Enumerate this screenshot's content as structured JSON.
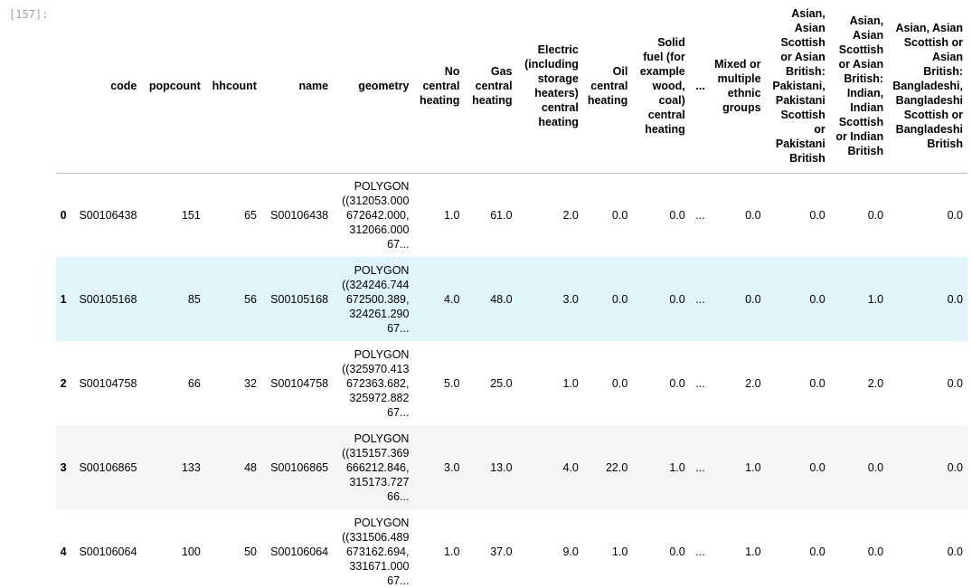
{
  "prompt": "[157]:",
  "columns": [
    "code",
    "popcount",
    "hhcount",
    "name",
    "geometry",
    "No central heating",
    "Gas central heating",
    "Electric (including storage heaters) central heating",
    "Oil central heating",
    "Solid fuel (for example wood, coal) central heating",
    "...",
    "Mixed or multiple ethnic groups",
    "Asian, Asian Scottish or Asian British: Pakistani, Pakistani Scottish or Pakistani British",
    "Asian, Asian Scottish or Asian British: Indian, Indian Scottish or Indian British",
    "Asian, Asian Scottish or Asian British: Bangladeshi, Bangladeshi Scottish or Bangladeshi British"
  ],
  "rows": [
    {
      "index": "0",
      "cells": [
        "S00106438",
        "151",
        "65",
        "S00106438",
        "POLYGON ((312053.000 672642.000, 312066.000 67...",
        "1.0",
        "61.0",
        "2.0",
        "0.0",
        "0.0",
        "...",
        "0.0",
        "0.0",
        "0.0",
        "0.0"
      ]
    },
    {
      "index": "1",
      "cells": [
        "S00105168",
        "85",
        "56",
        "S00105168",
        "POLYGON ((324246.744 672500.389, 324261.290 67...",
        "4.0",
        "48.0",
        "3.0",
        "0.0",
        "0.0",
        "...",
        "0.0",
        "0.0",
        "1.0",
        "0.0"
      ]
    },
    {
      "index": "2",
      "cells": [
        "S00104758",
        "66",
        "32",
        "S00104758",
        "POLYGON ((325970.413 672363.682, 325972.882 67...",
        "5.0",
        "25.0",
        "1.0",
        "0.0",
        "0.0",
        "...",
        "2.0",
        "0.0",
        "2.0",
        "0.0"
      ]
    },
    {
      "index": "3",
      "cells": [
        "S00106865",
        "133",
        "48",
        "S00106865",
        "POLYGON ((315157.369 666212.846, 315173.727 66...",
        "3.0",
        "13.0",
        "4.0",
        "22.0",
        "1.0",
        "...",
        "1.0",
        "0.0",
        "0.0",
        "0.0"
      ]
    },
    {
      "index": "4",
      "cells": [
        "S00106064",
        "100",
        "50",
        "S00106064",
        "POLYGON ((331506.489 673162.694, 331671.000 67...",
        "1.0",
        "37.0",
        "9.0",
        "1.0",
        "0.0",
        "...",
        "1.0",
        "0.0",
        "0.0",
        "0.0"
      ]
    }
  ],
  "colors": {
    "hover_row": "#dff4fb",
    "even_row": "#f5f5f5",
    "prompt": "#9e9e9e"
  }
}
